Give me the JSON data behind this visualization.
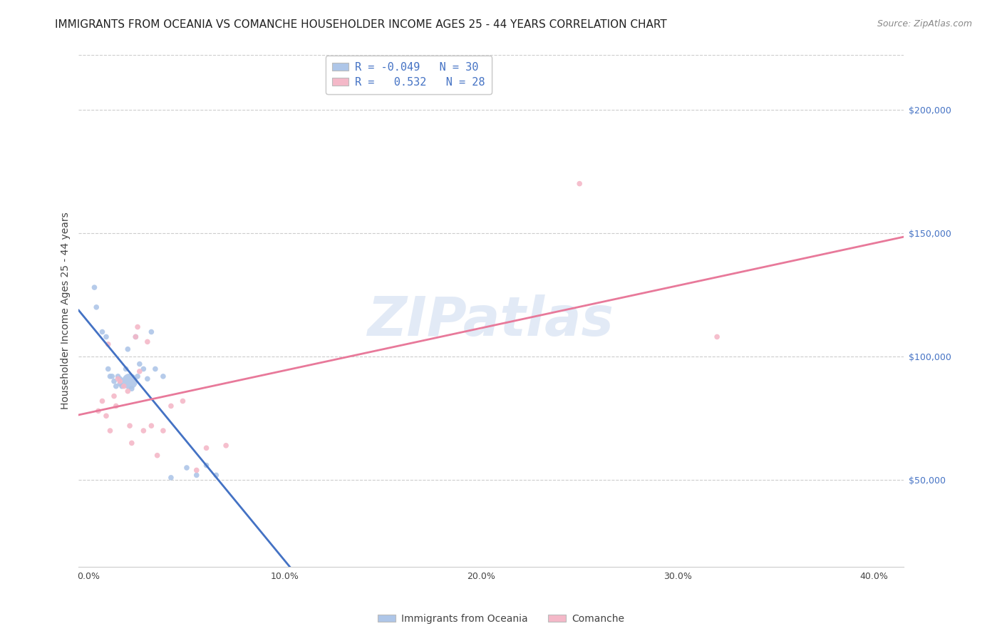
{
  "title": "IMMIGRANTS FROM OCEANIA VS COMANCHE HOUSEHOLDER INCOME AGES 25 - 44 YEARS CORRELATION CHART",
  "source": "Source: ZipAtlas.com",
  "ylabel": "Householder Income Ages 25 - 44 years",
  "xlabel_ticks": [
    "0.0%",
    "10.0%",
    "20.0%",
    "30.0%",
    "40.0%"
  ],
  "xlabel_tick_vals": [
    0.0,
    0.1,
    0.2,
    0.3,
    0.4
  ],
  "ylabel_ticks": [
    "$50,000",
    "$100,000",
    "$150,000",
    "$200,000"
  ],
  "ylabel_tick_vals": [
    50000,
    100000,
    150000,
    200000
  ],
  "xlim": [
    -0.005,
    0.415
  ],
  "ylim": [
    15000,
    222000
  ],
  "legend_entries": [
    {
      "label": "R = -0.049   N = 30",
      "color": "#aec6e8"
    },
    {
      "label": "R =   0.532   N = 28",
      "color": "#f4b8c8"
    }
  ],
  "legend_bottom": [
    "Immigrants from Oceania",
    "Comanche"
  ],
  "watermark": "ZIPatlas",
  "blue_color": "#4472c4",
  "pink_color": "#e8799a",
  "blue_scatter_color": "#aec6e8",
  "pink_scatter_color": "#f4b8c8",
  "blue_line_color": "#4472c4",
  "pink_line_color": "#e8799a",
  "oceania_x": [
    0.003,
    0.004,
    0.007,
    0.009,
    0.01,
    0.011,
    0.012,
    0.013,
    0.014,
    0.015,
    0.016,
    0.016,
    0.017,
    0.019,
    0.02,
    0.021,
    0.022,
    0.024,
    0.025,
    0.026,
    0.028,
    0.03,
    0.032,
    0.034,
    0.038,
    0.042,
    0.05,
    0.055,
    0.06,
    0.065
  ],
  "oceania_y": [
    128000,
    120000,
    110000,
    108000,
    95000,
    92000,
    92000,
    90000,
    88000,
    92000,
    91000,
    89000,
    88000,
    95000,
    103000,
    90000,
    87000,
    108000,
    92000,
    97000,
    95000,
    91000,
    110000,
    95000,
    92000,
    51000,
    55000,
    52000,
    56000,
    52000
  ],
  "oceania_sizes": [
    30,
    30,
    30,
    30,
    30,
    30,
    30,
    30,
    30,
    30,
    30,
    30,
    30,
    30,
    30,
    250,
    30,
    30,
    30,
    30,
    30,
    30,
    30,
    30,
    30,
    30,
    30,
    30,
    30,
    30
  ],
  "comanche_x": [
    0.005,
    0.007,
    0.009,
    0.01,
    0.011,
    0.013,
    0.014,
    0.015,
    0.016,
    0.018,
    0.02,
    0.021,
    0.022,
    0.024,
    0.025,
    0.026,
    0.028,
    0.03,
    0.032,
    0.035,
    0.038,
    0.042,
    0.048,
    0.055,
    0.06,
    0.07,
    0.25,
    0.32
  ],
  "comanche_y": [
    78000,
    82000,
    76000,
    105000,
    70000,
    84000,
    80000,
    91000,
    90000,
    88000,
    86000,
    72000,
    65000,
    108000,
    112000,
    94000,
    70000,
    106000,
    72000,
    60000,
    70000,
    80000,
    82000,
    54000,
    63000,
    64000,
    170000,
    108000
  ],
  "comanche_sizes": [
    30,
    30,
    30,
    30,
    30,
    30,
    30,
    30,
    30,
    30,
    30,
    30,
    30,
    30,
    30,
    30,
    30,
    30,
    30,
    30,
    30,
    30,
    30,
    30,
    30,
    30,
    30,
    30
  ],
  "title_fontsize": 11,
  "source_fontsize": 9,
  "axis_label_fontsize": 10,
  "tick_fontsize": 9,
  "legend_fontsize": 11
}
